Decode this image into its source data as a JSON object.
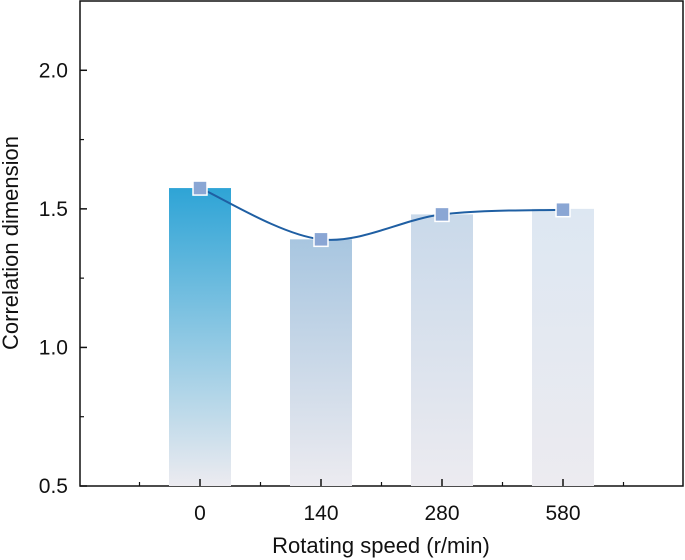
{
  "chart_data": {
    "type": "bar",
    "categories": [
      "0",
      "140",
      "280",
      "580"
    ],
    "values": [
      1.575,
      1.39,
      1.48,
      1.5
    ],
    "line_series": {
      "values": [
        1.575,
        1.39,
        1.48,
        1.497
      ],
      "marker": "square",
      "smooth": true
    },
    "xlabel": "Rotating speed (r/min)",
    "ylabel": "Correlation dimension",
    "ylim": [
      0.5,
      2.25
    ],
    "yticks": [
      "0.5",
      "1.0",
      "1.5",
      "2.0"
    ],
    "ytick_values": [
      0.5,
      1.0,
      1.5,
      2.0
    ],
    "grid": false,
    "colors": {
      "bar_gradient_top": [
        "#2ea4d6",
        "#a8c6e0",
        "#c9d9ea",
        "#dde7f2"
      ],
      "bar_gradient_bottom": "#ecebf0",
      "line": "#1f5fa3",
      "marker_fill": "#8aa6d4",
      "marker_stroke": "#ffffff",
      "axis": "#111111"
    }
  }
}
